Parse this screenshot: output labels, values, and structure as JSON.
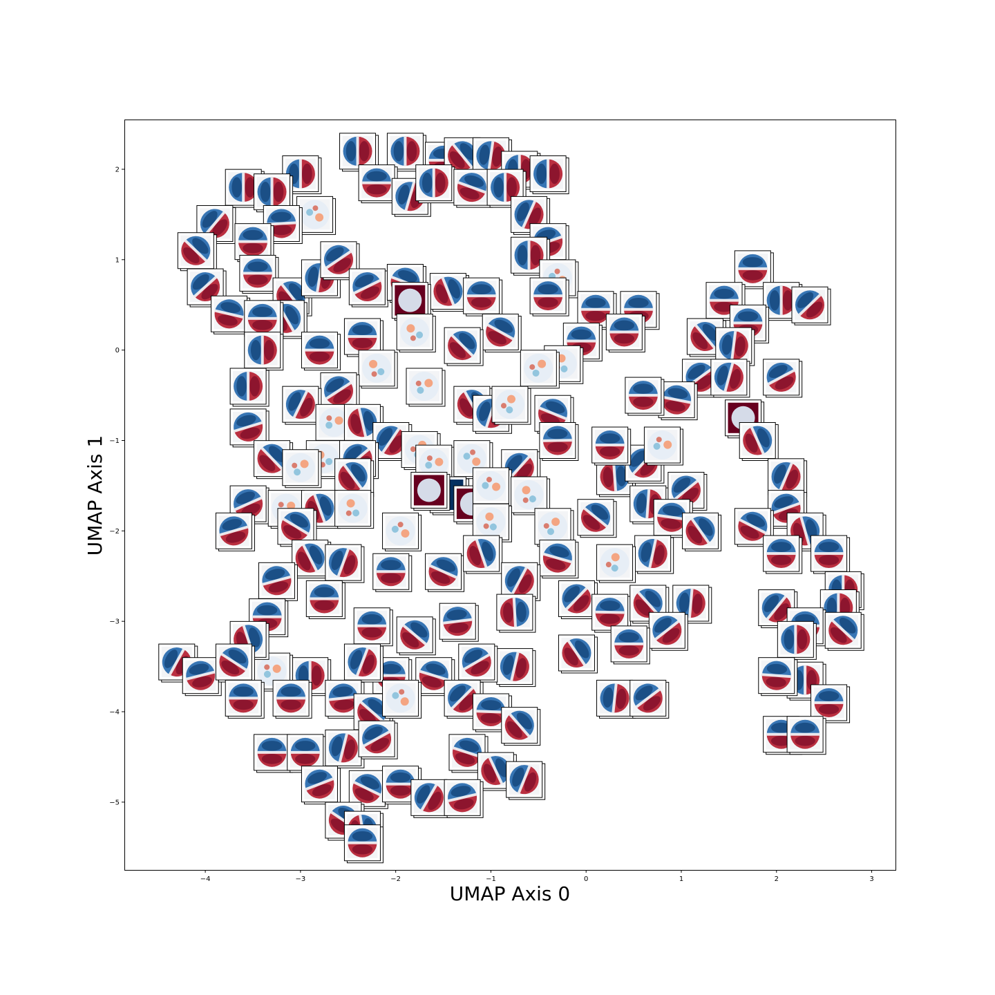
{
  "chart_data": {
    "type": "scatter",
    "marker": "image-thumbnail",
    "xlabel": "UMAP Axis 0",
    "ylabel": "UMAP Axis 1",
    "xlim": [
      -4.85,
      3.25
    ],
    "ylim": [
      -5.75,
      2.55
    ],
    "xticks": [
      -4,
      -3,
      -2,
      -1,
      0,
      1,
      2,
      3
    ],
    "yticks": [
      -5,
      -4,
      -3,
      -2,
      -1,
      0,
      1,
      2
    ],
    "xtick_labels": [
      "−4",
      "−3",
      "−2",
      "−1",
      "0",
      "1",
      "2",
      "3"
    ],
    "ytick_labels": [
      "−5",
      "−4",
      "−3",
      "−2",
      "−1",
      "0",
      "1",
      "2"
    ],
    "grid": false,
    "colors": {
      "red": "#b2182b",
      "dark_red": "#67001f",
      "blue": "#2166ac",
      "dark_blue": "#053061",
      "neutral": "#f3f4f6"
    },
    "points": [
      {
        "x": -2.4,
        "y": 2.2,
        "pattern": "dipole-v"
      },
      {
        "x": -1.9,
        "y": 2.2,
        "pattern": "dipole-v"
      },
      {
        "x": -1.5,
        "y": 2.1,
        "pattern": "dipole-h"
      },
      {
        "x": -1.3,
        "y": 2.15,
        "pattern": "dipole-d"
      },
      {
        "x": -1.0,
        "y": 2.15,
        "pattern": "dipole-d"
      },
      {
        "x": -0.7,
        "y": 2.0,
        "pattern": "dipole-v"
      },
      {
        "x": -0.4,
        "y": 1.95,
        "pattern": "dipole-v"
      },
      {
        "x": -2.2,
        "y": 1.85,
        "pattern": "dipole-h"
      },
      {
        "x": -1.85,
        "y": 1.7,
        "pattern": "dipole-d"
      },
      {
        "x": -1.6,
        "y": 1.85,
        "pattern": "dipole-v"
      },
      {
        "x": -1.2,
        "y": 1.8,
        "pattern": "dipole-d"
      },
      {
        "x": -0.85,
        "y": 1.8,
        "pattern": "dipole-v"
      },
      {
        "x": -0.6,
        "y": 1.5,
        "pattern": "dipole-d"
      },
      {
        "x": -0.4,
        "y": 1.2,
        "pattern": "dipole-d"
      },
      {
        "x": -0.6,
        "y": 1.05,
        "pattern": "dipole-v"
      },
      {
        "x": -0.3,
        "y": 0.8,
        "pattern": "speckle"
      },
      {
        "x": -3.0,
        "y": 1.95,
        "pattern": "dipole-v"
      },
      {
        "x": -3.6,
        "y": 1.8,
        "pattern": "dipole-v"
      },
      {
        "x": -3.3,
        "y": 1.75,
        "pattern": "dipole-v"
      },
      {
        "x": -2.85,
        "y": 1.5,
        "pattern": "speckle"
      },
      {
        "x": -3.9,
        "y": 1.4,
        "pattern": "dipole-d"
      },
      {
        "x": -3.2,
        "y": 1.4,
        "pattern": "dipole-d"
      },
      {
        "x": -4.1,
        "y": 1.1,
        "pattern": "dipole-d"
      },
      {
        "x": -3.5,
        "y": 1.2,
        "pattern": "dipole-h"
      },
      {
        "x": -4.0,
        "y": 0.7,
        "pattern": "dipole-d"
      },
      {
        "x": -3.45,
        "y": 0.85,
        "pattern": "dipole-h"
      },
      {
        "x": -3.1,
        "y": 0.6,
        "pattern": "dipole-d"
      },
      {
        "x": -2.8,
        "y": 0.8,
        "pattern": "dipole-d"
      },
      {
        "x": -2.6,
        "y": 1.0,
        "pattern": "dipole-d"
      },
      {
        "x": -3.75,
        "y": 0.4,
        "pattern": "dipole-d"
      },
      {
        "x": -3.15,
        "y": 0.35,
        "pattern": "dipole-d"
      },
      {
        "x": -3.4,
        "y": 0.35,
        "pattern": "dipole-h"
      },
      {
        "x": -2.3,
        "y": 0.7,
        "pattern": "dipole-d"
      },
      {
        "x": -1.9,
        "y": 0.75,
        "pattern": "dipole-d"
      },
      {
        "x": -1.45,
        "y": 0.65,
        "pattern": "dipole-d"
      },
      {
        "x": -1.1,
        "y": 0.6,
        "pattern": "dipole-h"
      },
      {
        "x": -1.85,
        "y": 0.55,
        "pattern": "solid-red"
      },
      {
        "x": -0.9,
        "y": 0.2,
        "pattern": "dipole-d"
      },
      {
        "x": -0.4,
        "y": 0.6,
        "pattern": "dipole-h"
      },
      {
        "x": 0.1,
        "y": 0.45,
        "pattern": "dipole-h"
      },
      {
        "x": 0.55,
        "y": 0.45,
        "pattern": "dipole-h"
      },
      {
        "x": 0.4,
        "y": 0.2,
        "pattern": "dipole-h"
      },
      {
        "x": -0.05,
        "y": 0.1,
        "pattern": "dipole-h"
      },
      {
        "x": -0.25,
        "y": -0.15,
        "pattern": "speckle"
      },
      {
        "x": -0.5,
        "y": -0.2,
        "pattern": "speckle"
      },
      {
        "x": -1.3,
        "y": 0.05,
        "pattern": "dipole-d"
      },
      {
        "x": -1.8,
        "y": 0.2,
        "pattern": "speckle"
      },
      {
        "x": -2.35,
        "y": 0.15,
        "pattern": "dipole-h"
      },
      {
        "x": -2.8,
        "y": 0.0,
        "pattern": "dipole-h"
      },
      {
        "x": -3.4,
        "y": 0.0,
        "pattern": "dipole-v"
      },
      {
        "x": -2.2,
        "y": -0.2,
        "pattern": "speckle"
      },
      {
        "x": -2.6,
        "y": -0.45,
        "pattern": "dipole-d"
      },
      {
        "x": -1.7,
        "y": -0.4,
        "pattern": "speckle"
      },
      {
        "x": -1.2,
        "y": -0.6,
        "pattern": "dipole-d"
      },
      {
        "x": -1.0,
        "y": -0.7,
        "pattern": "dipole-d"
      },
      {
        "x": -0.8,
        "y": -0.6,
        "pattern": "speckle"
      },
      {
        "x": -0.35,
        "y": -0.7,
        "pattern": "dipole-d"
      },
      {
        "x": -3.55,
        "y": -0.4,
        "pattern": "dipole-v"
      },
      {
        "x": -3.0,
        "y": -0.6,
        "pattern": "dipole-d"
      },
      {
        "x": -3.55,
        "y": -0.85,
        "pattern": "dipole-d"
      },
      {
        "x": -2.65,
        "y": -0.8,
        "pattern": "speckle"
      },
      {
        "x": -2.35,
        "y": -0.8,
        "pattern": "dipole-d"
      },
      {
        "x": -2.05,
        "y": -1.0,
        "pattern": "dipole-d"
      },
      {
        "x": -1.75,
        "y": -1.1,
        "pattern": "speckle"
      },
      {
        "x": -1.6,
        "y": -1.25,
        "pattern": "speckle"
      },
      {
        "x": -1.2,
        "y": -1.2,
        "pattern": "speckle"
      },
      {
        "x": -0.7,
        "y": -1.3,
        "pattern": "dipole-d"
      },
      {
        "x": -0.3,
        "y": -1.0,
        "pattern": "dipole-d"
      },
      {
        "x": -3.3,
        "y": -1.2,
        "pattern": "dipole-d"
      },
      {
        "x": -2.75,
        "y": -1.2,
        "pattern": "speckle"
      },
      {
        "x": -2.4,
        "y": -1.2,
        "pattern": "dipole-d"
      },
      {
        "x": -3.0,
        "y": -1.3,
        "pattern": "speckle"
      },
      {
        "x": -2.45,
        "y": -1.4,
        "pattern": "dipole-d"
      },
      {
        "x": -1.45,
        "y": -1.6,
        "pattern": "solid-blue"
      },
      {
        "x": -1.65,
        "y": -1.55,
        "pattern": "solid-red"
      },
      {
        "x": -1.2,
        "y": -1.7,
        "pattern": "solid-red"
      },
      {
        "x": -1.0,
        "y": -1.5,
        "pattern": "speckle"
      },
      {
        "x": -0.6,
        "y": -1.6,
        "pattern": "speckle"
      },
      {
        "x": -3.55,
        "y": -1.7,
        "pattern": "dipole-d"
      },
      {
        "x": -3.15,
        "y": -1.75,
        "pattern": "speckle"
      },
      {
        "x": -2.8,
        "y": -1.75,
        "pattern": "dipole-d"
      },
      {
        "x": -2.45,
        "y": -1.75,
        "pattern": "speckle"
      },
      {
        "x": -3.7,
        "y": -2.0,
        "pattern": "dipole-d"
      },
      {
        "x": -3.05,
        "y": -1.95,
        "pattern": "dipole-d"
      },
      {
        "x": -1.95,
        "y": -2.0,
        "pattern": "speckle"
      },
      {
        "x": -1.0,
        "y": -1.9,
        "pattern": "speckle"
      },
      {
        "x": -0.35,
        "y": -1.95,
        "pattern": "speckle"
      },
      {
        "x": 0.1,
        "y": -1.85,
        "pattern": "dipole-d"
      },
      {
        "x": 0.3,
        "y": -1.4,
        "pattern": "dipole-d"
      },
      {
        "x": 0.6,
        "y": -1.25,
        "pattern": "dipole-d"
      },
      {
        "x": 0.25,
        "y": -1.05,
        "pattern": "dipole-d"
      },
      {
        "x": 0.8,
        "y": -1.05,
        "pattern": "speckle"
      },
      {
        "x": 0.65,
        "y": -1.7,
        "pattern": "dipole-d"
      },
      {
        "x": 1.05,
        "y": -1.55,
        "pattern": "dipole-d"
      },
      {
        "x": 0.9,
        "y": -1.85,
        "pattern": "dipole-d"
      },
      {
        "x": 1.2,
        "y": -2.0,
        "pattern": "dipole-d"
      },
      {
        "x": 0.7,
        "y": -2.25,
        "pattern": "dipole-d"
      },
      {
        "x": 0.3,
        "y": -2.35,
        "pattern": "speckle"
      },
      {
        "x": -0.3,
        "y": -2.3,
        "pattern": "dipole-d"
      },
      {
        "x": -2.9,
        "y": -2.3,
        "pattern": "dipole-d"
      },
      {
        "x": -2.55,
        "y": -2.35,
        "pattern": "dipole-d"
      },
      {
        "x": -2.05,
        "y": -2.45,
        "pattern": "dipole-h"
      },
      {
        "x": -1.5,
        "y": -2.45,
        "pattern": "dipole-d"
      },
      {
        "x": -1.1,
        "y": -2.25,
        "pattern": "dipole-d"
      },
      {
        "x": -0.7,
        "y": -2.55,
        "pattern": "dipole-d"
      },
      {
        "x": -3.25,
        "y": -2.55,
        "pattern": "dipole-d"
      },
      {
        "x": -2.75,
        "y": -2.75,
        "pattern": "dipole-h"
      },
      {
        "x": -3.35,
        "y": -2.95,
        "pattern": "dipole-h"
      },
      {
        "x": -2.25,
        "y": -3.05,
        "pattern": "dipole-h"
      },
      {
        "x": -1.35,
        "y": -3.0,
        "pattern": "dipole-d"
      },
      {
        "x": -1.8,
        "y": -3.15,
        "pattern": "dipole-d"
      },
      {
        "x": -0.75,
        "y": -2.9,
        "pattern": "dipole-d"
      },
      {
        "x": -0.1,
        "y": -2.75,
        "pattern": "dipole-d"
      },
      {
        "x": 0.25,
        "y": -2.9,
        "pattern": "dipole-d"
      },
      {
        "x": 0.65,
        "y": -2.8,
        "pattern": "dipole-d"
      },
      {
        "x": 1.1,
        "y": -2.8,
        "pattern": "dipole-d"
      },
      {
        "x": 0.85,
        "y": -3.1,
        "pattern": "dipole-d"
      },
      {
        "x": 0.45,
        "y": -3.25,
        "pattern": "dipole-h"
      },
      {
        "x": -0.1,
        "y": -3.35,
        "pattern": "dipole-d"
      },
      {
        "x": -0.75,
        "y": -3.5,
        "pattern": "dipole-d"
      },
      {
        "x": -1.15,
        "y": -3.45,
        "pattern": "dipole-d"
      },
      {
        "x": -1.6,
        "y": -3.6,
        "pattern": "dipole-d"
      },
      {
        "x": -2.05,
        "y": -3.6,
        "pattern": "dipole-h"
      },
      {
        "x": -2.35,
        "y": -3.45,
        "pattern": "dipole-d"
      },
      {
        "x": -2.9,
        "y": -3.6,
        "pattern": "dipole-v"
      },
      {
        "x": -3.3,
        "y": -3.55,
        "pattern": "speckle"
      },
      {
        "x": -3.55,
        "y": -3.2,
        "pattern": "dipole-d"
      },
      {
        "x": -4.3,
        "y": -3.45,
        "pattern": "dipole-d"
      },
      {
        "x": -4.05,
        "y": -3.6,
        "pattern": "dipole-d"
      },
      {
        "x": -3.7,
        "y": -3.45,
        "pattern": "dipole-d"
      },
      {
        "x": -3.6,
        "y": -3.85,
        "pattern": "dipole-h"
      },
      {
        "x": -3.1,
        "y": -3.85,
        "pattern": "dipole-h"
      },
      {
        "x": -2.55,
        "y": -3.85,
        "pattern": "dipole-d"
      },
      {
        "x": -2.25,
        "y": -4.0,
        "pattern": "dipole-d"
      },
      {
        "x": -1.95,
        "y": -3.85,
        "pattern": "speckle"
      },
      {
        "x": -1.3,
        "y": -3.85,
        "pattern": "dipole-d"
      },
      {
        "x": -1.0,
        "y": -4.0,
        "pattern": "dipole-d"
      },
      {
        "x": -0.7,
        "y": -4.15,
        "pattern": "dipole-d"
      },
      {
        "x": 0.3,
        "y": -3.85,
        "pattern": "dipole-d"
      },
      {
        "x": 0.65,
        "y": -3.85,
        "pattern": "dipole-d"
      },
      {
        "x": -3.3,
        "y": -4.45,
        "pattern": "dipole-h"
      },
      {
        "x": -2.95,
        "y": -4.45,
        "pattern": "dipole-h"
      },
      {
        "x": -2.55,
        "y": -4.4,
        "pattern": "dipole-d"
      },
      {
        "x": -2.2,
        "y": -4.3,
        "pattern": "dipole-d"
      },
      {
        "x": -1.25,
        "y": -4.45,
        "pattern": "dipole-d"
      },
      {
        "x": -0.95,
        "y": -4.65,
        "pattern": "dipole-d"
      },
      {
        "x": -0.65,
        "y": -4.75,
        "pattern": "dipole-d"
      },
      {
        "x": -2.8,
        "y": -4.8,
        "pattern": "dipole-d"
      },
      {
        "x": -2.3,
        "y": -4.85,
        "pattern": "dipole-d"
      },
      {
        "x": -1.95,
        "y": -4.8,
        "pattern": "dipole-h"
      },
      {
        "x": -1.65,
        "y": -4.95,
        "pattern": "dipole-d"
      },
      {
        "x": -1.3,
        "y": -4.95,
        "pattern": "dipole-d"
      },
      {
        "x": -2.55,
        "y": -5.2,
        "pattern": "dipole-d"
      },
      {
        "x": -2.35,
        "y": -5.3,
        "pattern": "dipole-d"
      },
      {
        "x": -2.35,
        "y": -5.45,
        "pattern": "dipole-h"
      },
      {
        "x": 1.75,
        "y": 0.9,
        "pattern": "dipole-h"
      },
      {
        "x": 1.45,
        "y": 0.55,
        "pattern": "dipole-h"
      },
      {
        "x": 2.05,
        "y": 0.55,
        "pattern": "dipole-v"
      },
      {
        "x": 2.35,
        "y": 0.5,
        "pattern": "dipole-d"
      },
      {
        "x": 1.7,
        "y": 0.3,
        "pattern": "dipole-h"
      },
      {
        "x": 1.25,
        "y": 0.15,
        "pattern": "dipole-d"
      },
      {
        "x": 1.55,
        "y": 0.05,
        "pattern": "dipole-d"
      },
      {
        "x": 1.2,
        "y": -0.3,
        "pattern": "dipole-d"
      },
      {
        "x": 0.95,
        "y": -0.55,
        "pattern": "dipole-d"
      },
      {
        "x": 0.6,
        "y": -0.5,
        "pattern": "dipole-h"
      },
      {
        "x": 1.5,
        "y": -0.3,
        "pattern": "dipole-d"
      },
      {
        "x": 2.05,
        "y": -0.3,
        "pattern": "dipole-d"
      },
      {
        "x": 1.65,
        "y": -0.75,
        "pattern": "solid-red"
      },
      {
        "x": 1.8,
        "y": -1.0,
        "pattern": "dipole-d"
      },
      {
        "x": 2.1,
        "y": -1.4,
        "pattern": "dipole-d"
      },
      {
        "x": 2.1,
        "y": -1.75,
        "pattern": "dipole-d"
      },
      {
        "x": 1.75,
        "y": -1.95,
        "pattern": "dipole-d"
      },
      {
        "x": 2.3,
        "y": -2.0,
        "pattern": "dipole-d"
      },
      {
        "x": 2.05,
        "y": -2.25,
        "pattern": "dipole-h"
      },
      {
        "x": 2.55,
        "y": -2.25,
        "pattern": "dipole-h"
      },
      {
        "x": 2.7,
        "y": -2.65,
        "pattern": "dipole-v"
      },
      {
        "x": 2.65,
        "y": -2.85,
        "pattern": "dipole-v"
      },
      {
        "x": 2.0,
        "y": -2.85,
        "pattern": "dipole-d"
      },
      {
        "x": 2.3,
        "y": -3.05,
        "pattern": "dipole-h"
      },
      {
        "x": 2.7,
        "y": -3.1,
        "pattern": "dipole-d"
      },
      {
        "x": 2.2,
        "y": -3.2,
        "pattern": "dipole-v"
      },
      {
        "x": 2.3,
        "y": -3.65,
        "pattern": "dipole-v"
      },
      {
        "x": 2.0,
        "y": -3.6,
        "pattern": "dipole-d"
      },
      {
        "x": 2.55,
        "y": -3.9,
        "pattern": "dipole-h"
      },
      {
        "x": 2.05,
        "y": -4.25,
        "pattern": "dipole-h"
      },
      {
        "x": 2.3,
        "y": -4.25,
        "pattern": "dipole-h"
      }
    ]
  }
}
